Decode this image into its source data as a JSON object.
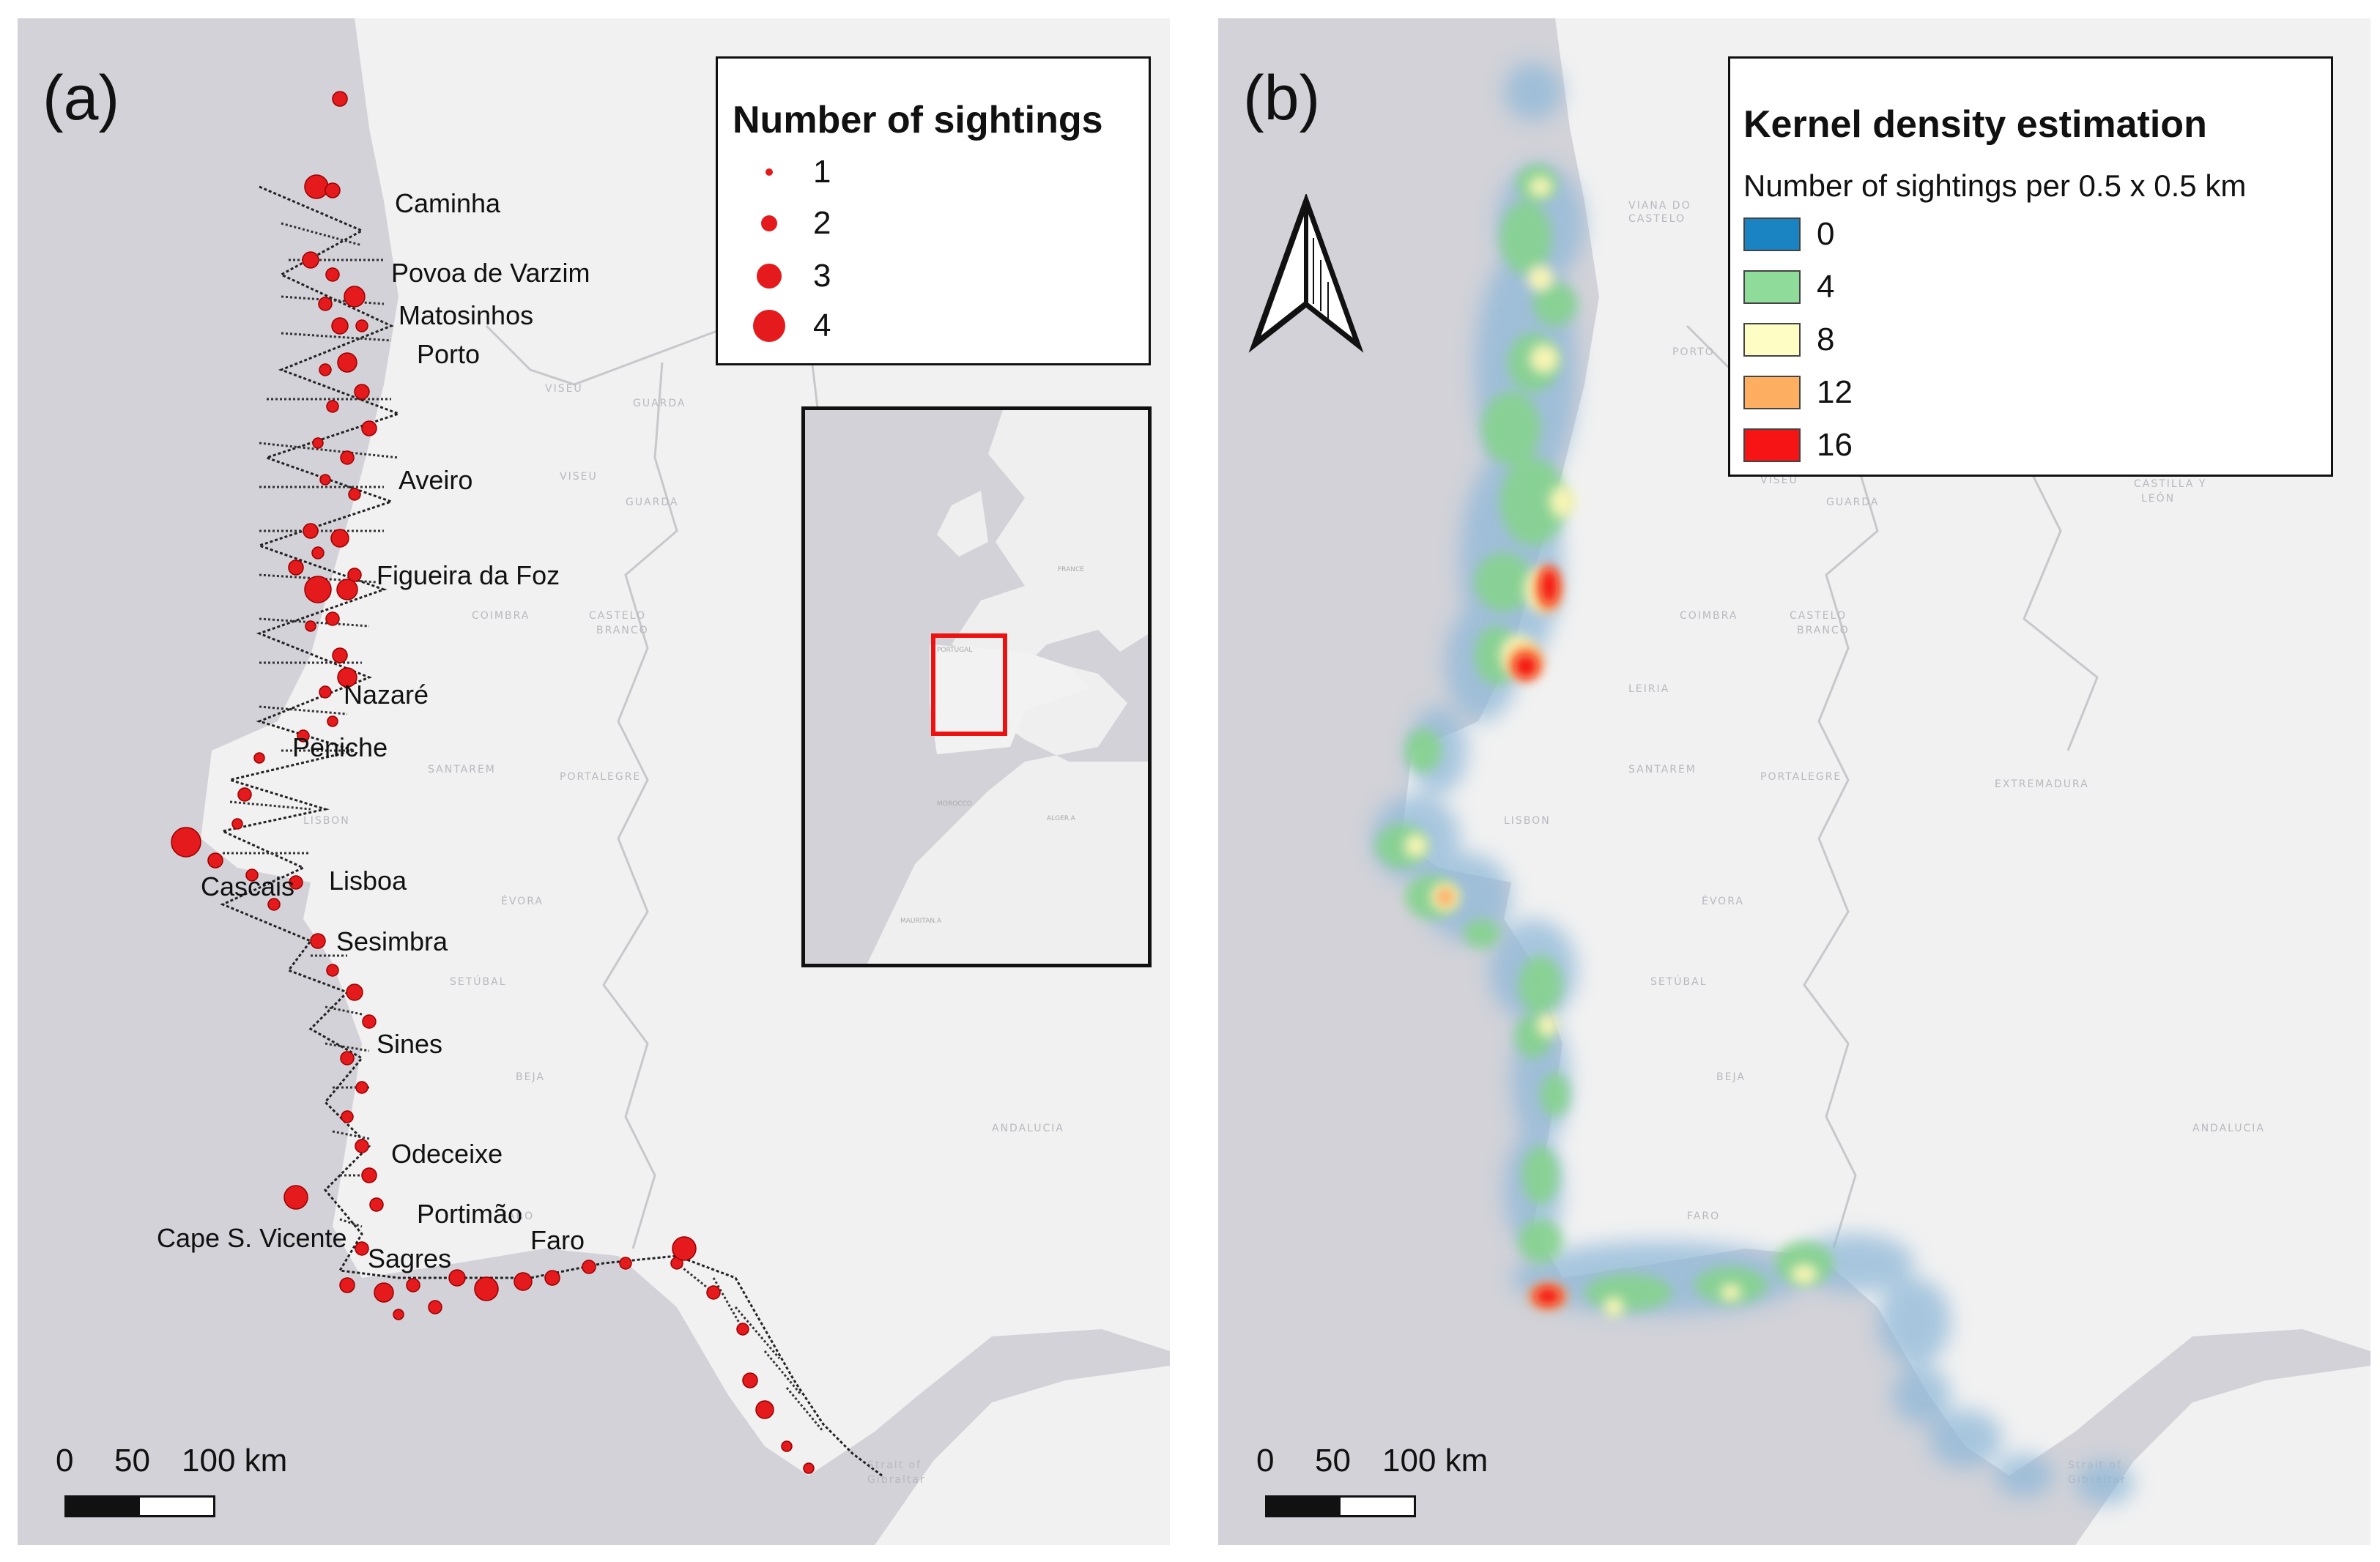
{
  "panel_a": {
    "label": "(a)",
    "legend": {
      "title": "Number of sightings",
      "items": [
        "1",
        "2",
        "3",
        "4"
      ],
      "symbol_color": "#e41a1c"
    },
    "cities": [
      "Caminha",
      "Povoa de Varzim",
      "Matosinhos",
      "Porto",
      "Aveiro",
      "Figueira da Foz",
      "Nazaré",
      "Peniche",
      "Cascais",
      "Lisboa",
      "Sesimbra",
      "Sines",
      "Odeceixe",
      "Portimão",
      "Cape S. Vicente",
      "Sagres",
      "Faro"
    ],
    "scalebar": {
      "ticks": [
        "0",
        "50",
        "100 km"
      ]
    },
    "inset": {
      "highlight_color": "#ee1111"
    }
  },
  "panel_b": {
    "label": "(b)",
    "legend": {
      "title": "Kernel density estimation",
      "subtitle": "Number of sightings per 0.5 x 0.5 km",
      "items": [
        {
          "label": "0",
          "color": "#1a84c2"
        },
        {
          "label": "4",
          "color": "#8fdc9a"
        },
        {
          "label": "8",
          "color": "#fdfdc4"
        },
        {
          "label": "12",
          "color": "#fdae61"
        },
        {
          "label": "16",
          "color": "#f71414"
        }
      ]
    },
    "scalebar": {
      "ticks": [
        "0",
        "50",
        "100 km"
      ]
    },
    "north_arrow": "north-arrow-icon"
  },
  "colors": {
    "sea": "#d2d2d8",
    "land": "#f1f1f1",
    "track": "#222222",
    "sighting": "#e41a1c"
  }
}
